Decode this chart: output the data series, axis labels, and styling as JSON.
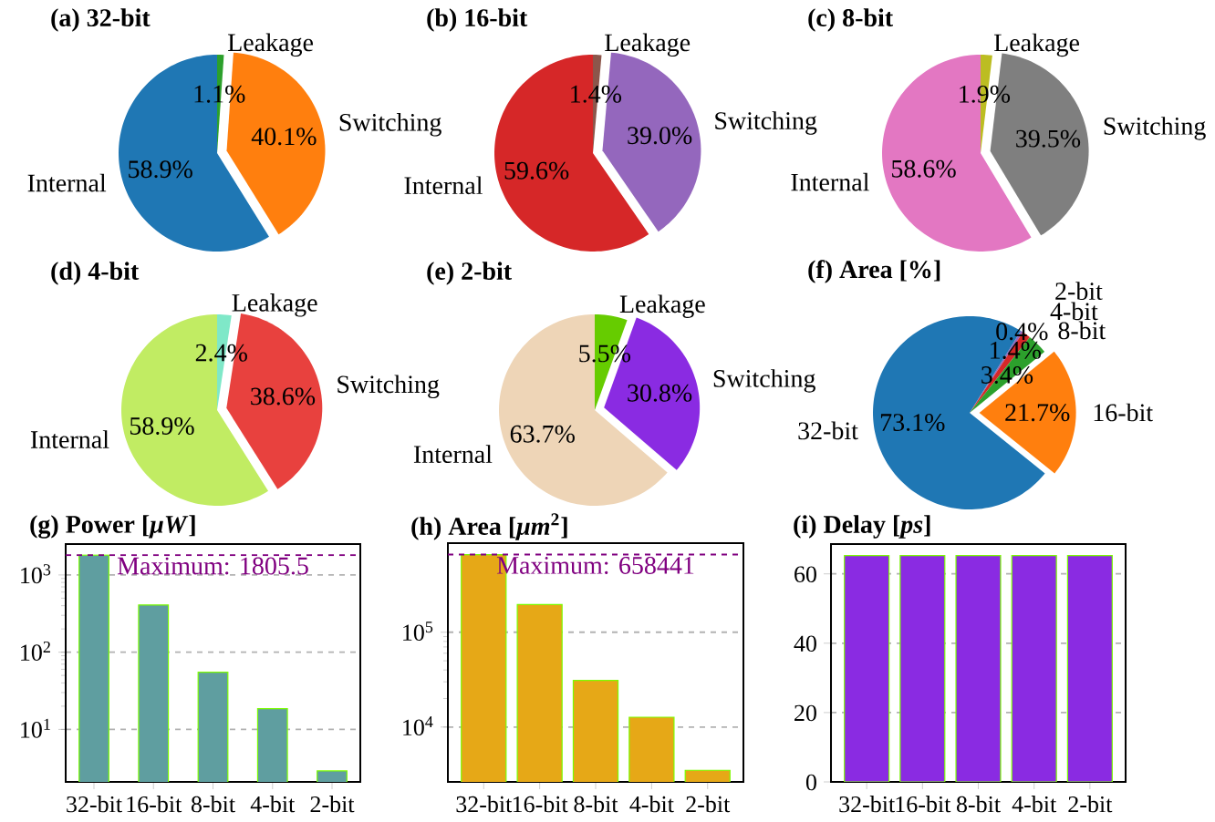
{
  "chart_data": [
    {
      "type": "pie",
      "title": "(a) 32-bit",
      "categories": [
        "Leakage",
        "Switching",
        "Internal"
      ],
      "values": [
        1.1,
        40.1,
        58.9
      ],
      "colors": [
        "#2ca02c",
        "#ff7f0e",
        "#1f77b4"
      ],
      "value_labels": [
        "1.1%",
        "40.1%",
        "58.9%"
      ]
    },
    {
      "type": "pie",
      "title": "(b) 16-bit",
      "categories": [
        "Leakage",
        "Switching",
        "Internal"
      ],
      "values": [
        1.4,
        39.0,
        59.6
      ],
      "colors": [
        "#8c564b",
        "#9467bd",
        "#d62728"
      ],
      "value_labels": [
        "1.4%",
        "39.0%",
        "59.6%"
      ]
    },
    {
      "type": "pie",
      "title": "(c) 8-bit",
      "categories": [
        "Leakage",
        "Switching",
        "Internal"
      ],
      "values": [
        1.9,
        39.5,
        58.6
      ],
      "colors": [
        "#bcbd22",
        "#7f7f7f",
        "#e377c2"
      ],
      "value_labels": [
        "1.9%",
        "39.5%",
        "58.6%"
      ]
    },
    {
      "type": "pie",
      "title": "(d) 4-bit",
      "categories": [
        "Leakage",
        "Switching",
        "Internal"
      ],
      "values": [
        2.4,
        38.6,
        58.9
      ],
      "colors": [
        "#7fe8c8",
        "#e8413e",
        "#c1ec63"
      ],
      "value_labels": [
        "2.4%",
        "38.6%",
        "58.9%"
      ]
    },
    {
      "type": "pie",
      "title": "(e) 2-bit",
      "categories": [
        "Leakage",
        "Switching",
        "Internal"
      ],
      "values": [
        5.5,
        30.8,
        63.7
      ],
      "colors": [
        "#66cc00",
        "#8a2be2",
        "#eed5b7"
      ],
      "value_labels": [
        "5.5%",
        "30.8%",
        "63.7%"
      ]
    },
    {
      "type": "pie",
      "title": "(f) Area [%]",
      "categories": [
        "2-bit",
        "4-bit",
        "8-bit",
        "16-bit",
        "32-bit"
      ],
      "values": [
        0.4,
        1.4,
        3.4,
        21.7,
        73.1
      ],
      "colors": [
        "#9467bd",
        "#d62728",
        "#2ca02c",
        "#ff7f0e",
        "#1f77b4"
      ],
      "value_labels": [
        "0.4%",
        "1.4%",
        "3.4%",
        "21.7%",
        "73.1%"
      ]
    },
    {
      "type": "bar",
      "title": "(g) Power [*μW*]",
      "categories": [
        "32-bit",
        "16-bit",
        "8-bit",
        "4-bit",
        "2-bit"
      ],
      "values": [
        1805.5,
        409,
        55,
        18.6,
        2.9
      ],
      "color": "#5f9ea0",
      "log": true,
      "ylim": [
        2.09,
        2512
      ],
      "yticks": [
        {
          "value": 10,
          "label": "10$^{1}$"
        },
        {
          "value": 100,
          "label": "10$^{2}$"
        },
        {
          "value": 1000,
          "label": "10$^{3}$"
        }
      ],
      "grid": "y",
      "ref_lines": [
        {
          "axis": "y",
          "value": 1805.5,
          "label": "Maximum: 1805.5",
          "color": "#800080",
          "line_style": "dashed"
        }
      ]
    },
    {
      "type": "bar",
      "title": "(h) Area [*μm*$^{2}$]",
      "categories": [
        "32-bit",
        "16-bit",
        "8-bit",
        "4-bit",
        "2-bit"
      ],
      "values": [
        658441,
        196000,
        31000,
        12700,
        3500
      ],
      "color": "#e6a817",
      "log": true,
      "ylim": [
        2640,
        870000
      ],
      "yticks": [
        {
          "value": 10000,
          "label": "10$^{4}$"
        },
        {
          "value": 100000,
          "label": "10$^{5}$"
        }
      ],
      "grid": "y",
      "ref_lines": [
        {
          "axis": "y",
          "value": 658441,
          "label": "Maximum: 658441",
          "color": "#800080",
          "line_style": "dashed"
        }
      ]
    },
    {
      "type": "bar",
      "title": "(i) Delay [*ps*]",
      "categories": [
        "32-bit",
        "16-bit",
        "8-bit",
        "4-bit",
        "2-bit"
      ],
      "values": [
        65.3,
        65.3,
        65.3,
        65.3,
        65.3
      ],
      "color": "#8a2be2",
      "ylim": [
        0,
        68.6
      ],
      "yticks": [
        0,
        20,
        40,
        60
      ],
      "grid": "y"
    }
  ]
}
